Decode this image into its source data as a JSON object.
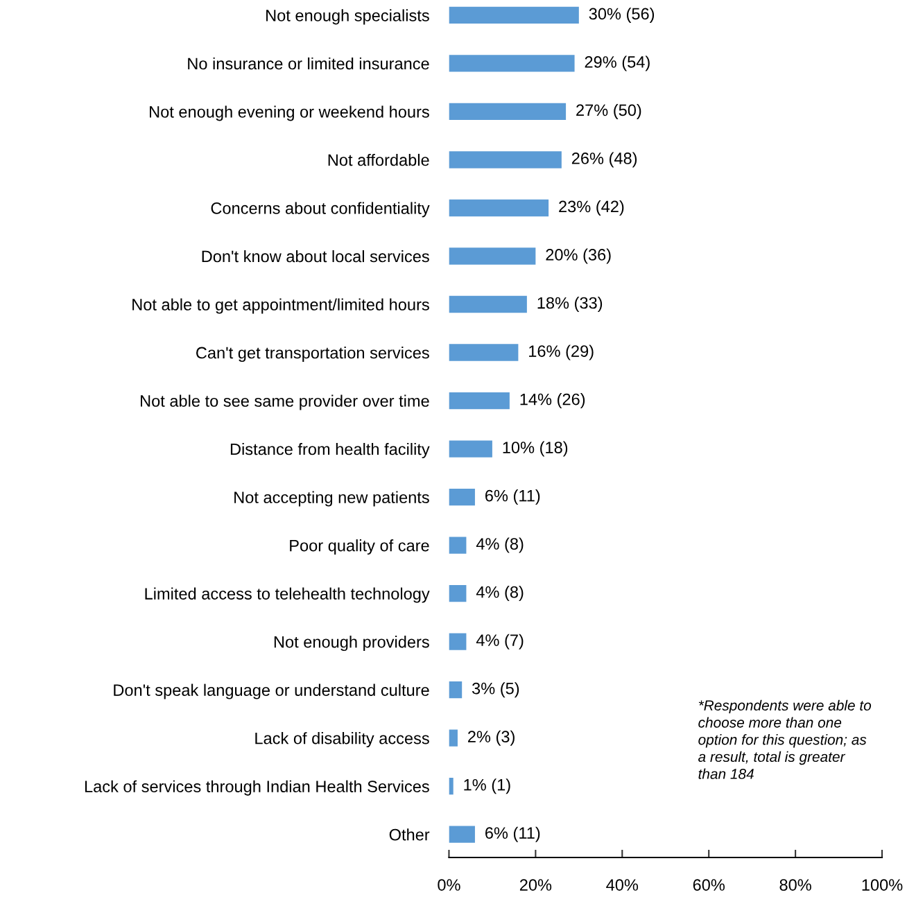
{
  "chart_data": {
    "type": "bar",
    "orientation": "horizontal",
    "categories": [
      "Not enough specialists",
      "No insurance or limited insurance",
      "Not enough evening or weekend hours",
      "Not affordable",
      "Concerns about confidentiality",
      "Don't know about local services",
      "Not able to get appointment/limited hours",
      "Can't get transportation services",
      "Not able to see same provider over time",
      "Distance from health facility",
      "Not accepting new patients",
      "Poor quality of care",
      "Limited access to telehealth technology",
      "Not enough providers",
      "Don't speak language or understand culture",
      "Lack of disability access",
      "Lack of services through Indian Health Services",
      "Other"
    ],
    "values": [
      30,
      29,
      27,
      26,
      23,
      20,
      18,
      16,
      14,
      10,
      6,
      4,
      4,
      4,
      3,
      2,
      1,
      6
    ],
    "value_labels": [
      "30% (56)",
      "29% (54)",
      "27% (50)",
      "26% (48)",
      "23% (42)",
      "20% (36)",
      "18% (33)",
      "16% (29)",
      "14% (26)",
      "10% (18)",
      "6% (11)",
      "4% (8)",
      "4% (8)",
      "4% (7)",
      "3% (5)",
      "2% (3)",
      "1% (1)",
      "6% (11)"
    ],
    "color": "#5b9bd5",
    "xlim": [
      0,
      100
    ],
    "xticks": [
      {
        "value": 0,
        "label": "0%"
      },
      {
        "value": 20,
        "label": "20%"
      },
      {
        "value": 40,
        "label": "40%"
      },
      {
        "value": 60,
        "label": "60%"
      },
      {
        "value": 80,
        "label": "80%"
      },
      {
        "value": 100,
        "label": "100%"
      }
    ],
    "grid": false,
    "legend": false,
    "annotations": [
      "*Respondents were able to\nchoose more than one\noption for this question; as\na result, total is greater\nthan 184"
    ]
  }
}
